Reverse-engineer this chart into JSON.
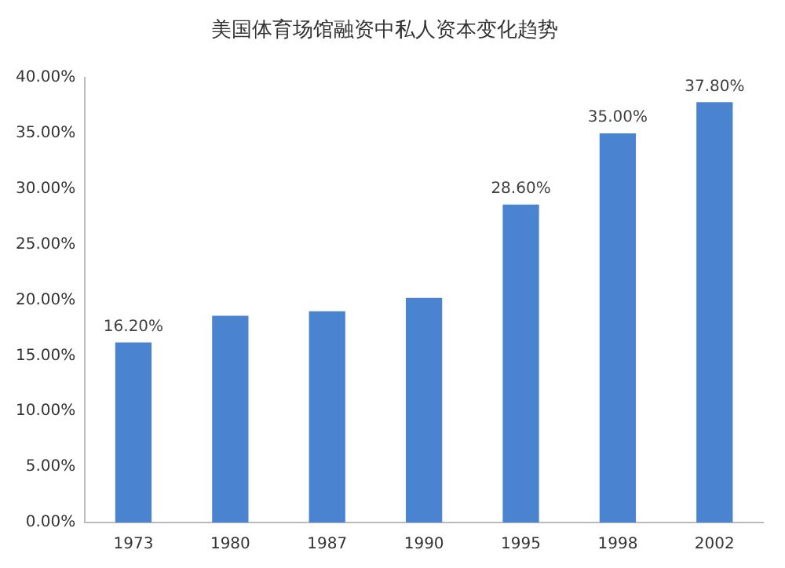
{
  "chart_data": {
    "type": "bar",
    "title": "美国体育场馆融资中私人资本变化趋势",
    "categories": [
      "1973",
      "1980",
      "1987",
      "1990",
      "1995",
      "1998",
      "2002"
    ],
    "values": [
      16.2,
      18.6,
      19.0,
      20.2,
      28.6,
      35.0,
      37.8
    ],
    "value_labels": [
      "16.20%",
      null,
      null,
      null,
      "28.60%",
      "35.00%",
      "37.80%"
    ],
    "color": "#4a84d0",
    "ylim": [
      0,
      40
    ],
    "yticks": [
      {
        "value": 0,
        "label": "0.00%"
      },
      {
        "value": 5,
        "label": "5.00%"
      },
      {
        "value": 10,
        "label": "10.00%"
      },
      {
        "value": 15,
        "label": "15.00%"
      },
      {
        "value": 20,
        "label": "20.00%"
      },
      {
        "value": 25,
        "label": "25.00%"
      },
      {
        "value": 30,
        "label": "30.00%"
      },
      {
        "value": 35,
        "label": "35.00%"
      },
      {
        "value": 40,
        "label": "40.00%"
      }
    ],
    "grid": false,
    "legend": false
  }
}
